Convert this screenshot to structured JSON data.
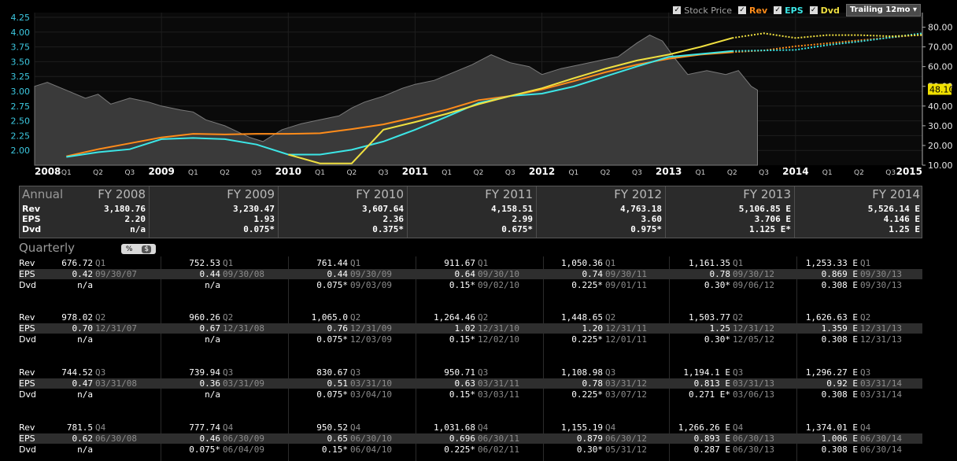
{
  "toolbar": {
    "items": [
      {
        "label": "Stock Price",
        "color": "#a8a8a8",
        "check": "✓"
      },
      {
        "label": "Rev",
        "color": "#ff8c1a",
        "check": "✓"
      },
      {
        "label": "EPS",
        "color": "#3ce6e6",
        "check": "✓"
      },
      {
        "label": "Dvd",
        "color": "#f0e040",
        "check": "✓"
      }
    ],
    "period": "Trailing 12mo",
    "dropdown_icon": "▾"
  },
  "chart_data": {
    "type": "line",
    "left_axis": {
      "min": 1.75,
      "max": 4.25,
      "ticks": [
        "4.25",
        "4.00",
        "3.75",
        "3.50",
        "3.25",
        "3.00",
        "2.75",
        "2.50",
        "2.25",
        "2.00"
      ]
    },
    "right_axis": {
      "min": 10,
      "max": 85,
      "ticks": [
        "80.00",
        "70.00",
        "60.00",
        "50.00",
        "40.00",
        "30.00",
        "20.00",
        "10.00"
      ]
    },
    "price_label": "48.10",
    "x_axis": {
      "labels": [
        "2008",
        "Q1",
        "Q2",
        "Q3",
        "2009",
        "Q1",
        "Q2",
        "Q3",
        "2010",
        "Q1",
        "Q2",
        "Q3",
        "2011",
        "Q1",
        "Q2",
        "Q3",
        "2012",
        "Q1",
        "Q2",
        "Q3",
        "2013",
        "Q1",
        "Q2",
        "Q3",
        "2014",
        "Q1",
        "Q2",
        "Q3",
        "2015"
      ],
      "start": 2008.0,
      "end": 2015.0
    },
    "price_series": {
      "name": "Stock Price",
      "color": "#9a9a9a",
      "points": [
        [
          2008.0,
          50
        ],
        [
          2008.1,
          52
        ],
        [
          2008.25,
          48
        ],
        [
          2008.4,
          44
        ],
        [
          2008.5,
          46
        ],
        [
          2008.6,
          41
        ],
        [
          2008.75,
          44
        ],
        [
          2008.9,
          42
        ],
        [
          2009.0,
          40
        ],
        [
          2009.15,
          38
        ],
        [
          2009.25,
          37
        ],
        [
          2009.35,
          33
        ],
        [
          2009.5,
          30
        ],
        [
          2009.6,
          27
        ],
        [
          2009.7,
          24
        ],
        [
          2009.8,
          22
        ],
        [
          2009.95,
          28
        ],
        [
          2010.1,
          31
        ],
        [
          2010.25,
          33
        ],
        [
          2010.4,
          35
        ],
        [
          2010.5,
          39
        ],
        [
          2010.6,
          42
        ],
        [
          2010.75,
          45
        ],
        [
          2010.9,
          49
        ],
        [
          2011.0,
          51
        ],
        [
          2011.15,
          53
        ],
        [
          2011.3,
          57
        ],
        [
          2011.45,
          61
        ],
        [
          2011.6,
          66
        ],
        [
          2011.75,
          62
        ],
        [
          2011.9,
          60
        ],
        [
          2012.0,
          56
        ],
        [
          2012.15,
          59
        ],
        [
          2012.3,
          61
        ],
        [
          2012.45,
          63
        ],
        [
          2012.6,
          65
        ],
        [
          2012.75,
          72
        ],
        [
          2012.85,
          76
        ],
        [
          2012.95,
          73
        ],
        [
          2013.05,
          64
        ],
        [
          2013.15,
          56
        ],
        [
          2013.3,
          58
        ],
        [
          2013.45,
          56
        ],
        [
          2013.55,
          58
        ],
        [
          2013.65,
          50
        ],
        [
          2013.7,
          48.1
        ]
      ]
    },
    "series": [
      {
        "name": "Rev",
        "color": "#ff8c1a",
        "points": [
          [
            2008.25,
            1.9
          ],
          [
            2008.5,
            2.02
          ],
          [
            2008.75,
            2.12
          ],
          [
            2009.0,
            2.22
          ],
          [
            2009.25,
            2.28
          ],
          [
            2009.5,
            2.27
          ],
          [
            2009.75,
            2.28
          ],
          [
            2010.0,
            2.28
          ],
          [
            2010.25,
            2.29
          ],
          [
            2010.5,
            2.36
          ],
          [
            2010.75,
            2.44
          ],
          [
            2011.0,
            2.56
          ],
          [
            2011.25,
            2.69
          ],
          [
            2011.5,
            2.85
          ],
          [
            2011.75,
            2.92
          ],
          [
            2012.0,
            3.03
          ],
          [
            2012.25,
            3.17
          ],
          [
            2012.5,
            3.32
          ],
          [
            2012.75,
            3.45
          ],
          [
            2013.0,
            3.55
          ],
          [
            2013.25,
            3.62
          ],
          [
            2013.5,
            3.66
          ]
        ],
        "forecast": [
          [
            2013.5,
            3.66
          ],
          [
            2013.75,
            3.69
          ],
          [
            2014.0,
            3.76
          ],
          [
            2014.25,
            3.81
          ],
          [
            2014.5,
            3.86
          ],
          [
            2014.75,
            3.91
          ],
          [
            2015.0,
            3.96
          ]
        ]
      },
      {
        "name": "EPS",
        "color": "#3ce6e6",
        "points": [
          [
            2008.25,
            1.89
          ],
          [
            2008.5,
            1.97
          ],
          [
            2008.75,
            2.02
          ],
          [
            2009.0,
            2.19
          ],
          [
            2009.25,
            2.21
          ],
          [
            2009.5,
            2.19
          ],
          [
            2009.75,
            2.1
          ],
          [
            2010.0,
            1.93
          ],
          [
            2010.25,
            1.93
          ],
          [
            2010.5,
            2.01
          ],
          [
            2010.75,
            2.15
          ],
          [
            2011.0,
            2.35
          ],
          [
            2011.25,
            2.57
          ],
          [
            2011.5,
            2.8
          ],
          [
            2011.75,
            2.92
          ],
          [
            2012.0,
            2.96
          ],
          [
            2012.25,
            3.08
          ],
          [
            2012.5,
            3.25
          ],
          [
            2012.75,
            3.42
          ],
          [
            2013.0,
            3.58
          ],
          [
            2013.25,
            3.63
          ],
          [
            2013.5,
            3.68
          ]
        ],
        "forecast": [
          [
            2013.5,
            3.68
          ],
          [
            2013.75,
            3.69
          ],
          [
            2014.0,
            3.7
          ],
          [
            2014.25,
            3.78
          ],
          [
            2014.5,
            3.84
          ],
          [
            2014.75,
            3.91
          ],
          [
            2015.0,
            3.98
          ]
        ]
      },
      {
        "name": "Dvd",
        "color": "#f0e040",
        "points": [
          [
            2010.0,
            1.93
          ],
          [
            2010.25,
            1.78
          ],
          [
            2010.5,
            1.78
          ],
          [
            2010.75,
            2.35
          ],
          [
            2011.0,
            2.48
          ],
          [
            2011.25,
            2.62
          ],
          [
            2011.5,
            2.78
          ],
          [
            2011.75,
            2.92
          ],
          [
            2012.0,
            3.05
          ],
          [
            2012.25,
            3.22
          ],
          [
            2012.5,
            3.38
          ],
          [
            2012.75,
            3.52
          ],
          [
            2013.0,
            3.62
          ],
          [
            2013.25,
            3.75
          ],
          [
            2013.5,
            3.9
          ]
        ],
        "forecast": [
          [
            2013.5,
            3.9
          ],
          [
            2013.75,
            3.98
          ],
          [
            2014.0,
            3.9
          ],
          [
            2014.25,
            3.95
          ],
          [
            2014.5,
            3.95
          ],
          [
            2014.75,
            3.93
          ],
          [
            2015.0,
            3.95
          ]
        ]
      }
    ]
  },
  "annual": {
    "title": "Annual",
    "row_labels": [
      "Rev",
      "EPS",
      "Dvd"
    ],
    "columns": [
      {
        "year": "FY 2008",
        "rev": "3,180.76",
        "eps": "2.20",
        "dvd": "n/a"
      },
      {
        "year": "FY 2009",
        "rev": "3,230.47",
        "eps": "1.93",
        "dvd": "0.075*"
      },
      {
        "year": "FY 2010",
        "rev": "3,607.64",
        "eps": "2.36",
        "dvd": "0.375*"
      },
      {
        "year": "FY 2011",
        "rev": "4,158.51",
        "eps": "2.99",
        "dvd": "0.675*"
      },
      {
        "year": "FY 2012",
        "rev": "4,763.18",
        "eps": "3.60",
        "dvd": "0.975*"
      },
      {
        "year": "FY 2013",
        "rev": "5,106.85 E",
        "eps": "3.706 E",
        "dvd": "1.125 E*"
      },
      {
        "year": "FY 2014",
        "rev": "5,526.14 E",
        "eps": "4.146 E",
        "dvd": "1.25 E"
      }
    ]
  },
  "quarterly": {
    "title": "Quarterly",
    "toggle": [
      "%",
      "$"
    ],
    "row_labels": [
      "Rev",
      "EPS",
      "Dvd"
    ],
    "groups": [
      {
        "rows": [
          [
            [
              "676.72",
              "Q1"
            ],
            [
              "752.53",
              "Q1"
            ],
            [
              "761.44",
              "Q1"
            ],
            [
              "911.67",
              "Q1"
            ],
            [
              "1,050.36",
              "Q1"
            ],
            [
              "1,161.35",
              "Q1"
            ],
            [
              "1,253.33 E",
              "Q1"
            ]
          ],
          [
            [
              "0.42",
              "09/30/07"
            ],
            [
              "0.44",
              "09/30/08"
            ],
            [
              "0.44",
              "09/30/09"
            ],
            [
              "0.64",
              "09/30/10"
            ],
            [
              "0.74",
              "09/30/11"
            ],
            [
              "0.78",
              "09/30/12"
            ],
            [
              "0.869 E",
              "09/30/13"
            ]
          ],
          [
            [
              "n/a",
              ""
            ],
            [
              "n/a",
              ""
            ],
            [
              "0.075*",
              "09/03/09"
            ],
            [
              "0.15*",
              "09/02/10"
            ],
            [
              "0.225*",
              "09/01/11"
            ],
            [
              "0.30*",
              "09/06/12"
            ],
            [
              "0.308 E",
              "09/30/13"
            ]
          ]
        ]
      },
      {
        "rows": [
          [
            [
              "978.02",
              "Q2"
            ],
            [
              "960.26",
              "Q2"
            ],
            [
              "1,065.0",
              "Q2"
            ],
            [
              "1,264.46",
              "Q2"
            ],
            [
              "1,448.65",
              "Q2"
            ],
            [
              "1,503.77",
              "Q2"
            ],
            [
              "1,626.63 E",
              "Q2"
            ]
          ],
          [
            [
              "0.70",
              "12/31/07"
            ],
            [
              "0.67",
              "12/31/08"
            ],
            [
              "0.76",
              "12/31/09"
            ],
            [
              "1.02",
              "12/31/10"
            ],
            [
              "1.20",
              "12/31/11"
            ],
            [
              "1.25",
              "12/31/12"
            ],
            [
              "1.359 E",
              "12/31/13"
            ]
          ],
          [
            [
              "n/a",
              ""
            ],
            [
              "n/a",
              ""
            ],
            [
              "0.075*",
              "12/03/09"
            ],
            [
              "0.15*",
              "12/02/10"
            ],
            [
              "0.225*",
              "12/01/11"
            ],
            [
              "0.30*",
              "12/05/12"
            ],
            [
              "0.308 E",
              "12/31/13"
            ]
          ]
        ]
      },
      {
        "rows": [
          [
            [
              "744.52",
              "Q3"
            ],
            [
              "739.94",
              "Q3"
            ],
            [
              "830.67",
              "Q3"
            ],
            [
              "950.71",
              "Q3"
            ],
            [
              "1,108.98",
              "Q3"
            ],
            [
              "1,194.1 E",
              "Q3"
            ],
            [
              "1,296.27 E",
              "Q3"
            ]
          ],
          [
            [
              "0.47",
              "03/31/08"
            ],
            [
              "0.36",
              "03/31/09"
            ],
            [
              "0.51",
              "03/31/10"
            ],
            [
              "0.63",
              "03/31/11"
            ],
            [
              "0.78",
              "03/31/12"
            ],
            [
              "0.813 E",
              "03/31/13"
            ],
            [
              "0.92 E",
              "03/31/14"
            ]
          ],
          [
            [
              "n/a",
              ""
            ],
            [
              "n/a",
              ""
            ],
            [
              "0.075*",
              "03/04/10"
            ],
            [
              "0.15*",
              "03/03/11"
            ],
            [
              "0.225*",
              "03/07/12"
            ],
            [
              "0.271 E*",
              "03/06/13"
            ],
            [
              "0.308 E",
              "03/31/14"
            ]
          ]
        ]
      },
      {
        "rows": [
          [
            [
              "781.5",
              "Q4"
            ],
            [
              "777.74",
              "Q4"
            ],
            [
              "950.52",
              "Q4"
            ],
            [
              "1,031.68",
              "Q4"
            ],
            [
              "1,155.19",
              "Q4"
            ],
            [
              "1,266.26 E",
              "Q4"
            ],
            [
              "1,374.01 E",
              "Q4"
            ]
          ],
          [
            [
              "0.62",
              "06/30/08"
            ],
            [
              "0.46",
              "06/30/09"
            ],
            [
              "0.65",
              "06/30/10"
            ],
            [
              "0.696",
              "06/30/11"
            ],
            [
              "0.879",
              "06/30/12"
            ],
            [
              "0.893 E",
              "06/30/13"
            ],
            [
              "1.006 E",
              "06/30/14"
            ]
          ],
          [
            [
              "n/a",
              ""
            ],
            [
              "0.075*",
              "06/04/09"
            ],
            [
              "0.15*",
              "06/04/10"
            ],
            [
              "0.225*",
              "06/02/11"
            ],
            [
              "0.30*",
              "05/31/12"
            ],
            [
              "0.287 E",
              "06/30/13"
            ],
            [
              "0.308 E",
              "06/30/14"
            ]
          ]
        ]
      }
    ]
  }
}
